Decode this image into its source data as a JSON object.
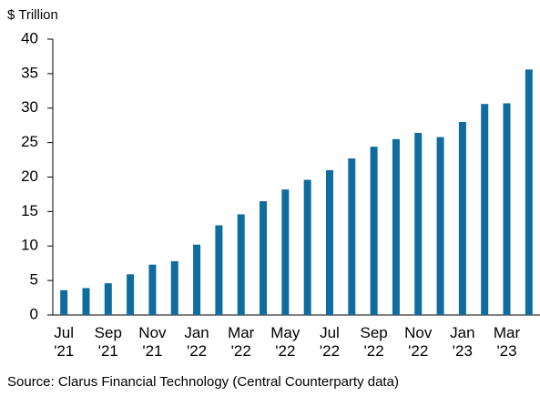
{
  "chart_data": {
    "type": "bar",
    "y_label": "$ Trillion",
    "source": "Source: Clarus Financial Technology (Central Counterparty data)",
    "categories": [
      "Jul\n'21",
      null,
      "Sep\n'21",
      null,
      "Nov\n'21",
      null,
      "Jan\n'22",
      null,
      "Mar\n'22",
      null,
      "May\n'22",
      null,
      "Jul\n'22",
      null,
      "Sep\n'22",
      null,
      "Nov\n'22",
      null,
      "Jan\n'23",
      null,
      "Mar\n'23",
      null
    ],
    "values": [
      3.6,
      3.9,
      4.6,
      5.9,
      7.3,
      7.8,
      10.2,
      13.0,
      14.6,
      16.5,
      18.2,
      19.6,
      21.0,
      22.7,
      24.4,
      25.5,
      26.4,
      25.8,
      28.0,
      30.6,
      30.7,
      35.6
    ],
    "color": "#0e6c9e",
    "ylim": [
      0,
      40
    ],
    "yticks": [
      0,
      5,
      10,
      15,
      20,
      25,
      30,
      35,
      40
    ],
    "grid": false
  }
}
